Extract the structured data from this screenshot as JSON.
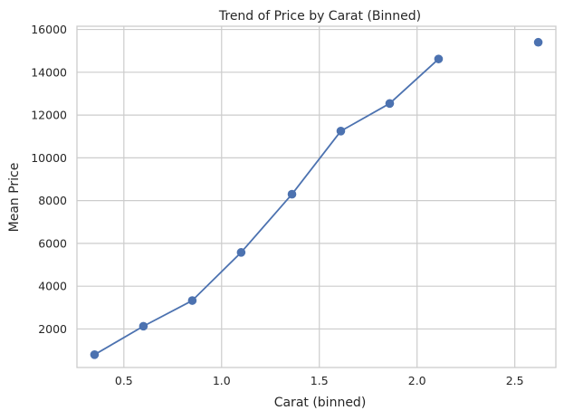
{
  "chart_data": {
    "type": "line",
    "title": "Trend of Price by Carat (Binned)",
    "xlabel": "Carat (binned)",
    "ylabel": "Mean Price",
    "xlim": [
      0.26,
      2.71
    ],
    "ylim": [
      200,
      16150
    ],
    "x_ticks": [
      0.5,
      1.0,
      1.5,
      2.0,
      2.5
    ],
    "x_tick_labels": [
      "0.5",
      "1.0",
      "1.5",
      "2.0",
      "2.5"
    ],
    "y_ticks": [
      2000,
      4000,
      6000,
      8000,
      10000,
      12000,
      14000,
      16000
    ],
    "y_tick_labels": [
      "2000",
      "4000",
      "6000",
      "8000",
      "10000",
      "12000",
      "14000",
      "16000"
    ],
    "grid": true,
    "legend": false,
    "series": [
      {
        "x": [
          0.35,
          0.6,
          0.85,
          1.1,
          1.36,
          1.61,
          1.86,
          2.11,
          2.62
        ],
        "y": [
          800,
          2130,
          3330,
          5580,
          8300,
          11250,
          12540,
          14620,
          15400
        ],
        "marker": "o",
        "color": "#4c72b0",
        "line_segments": [
          [
            0,
            7
          ]
        ]
      }
    ]
  }
}
